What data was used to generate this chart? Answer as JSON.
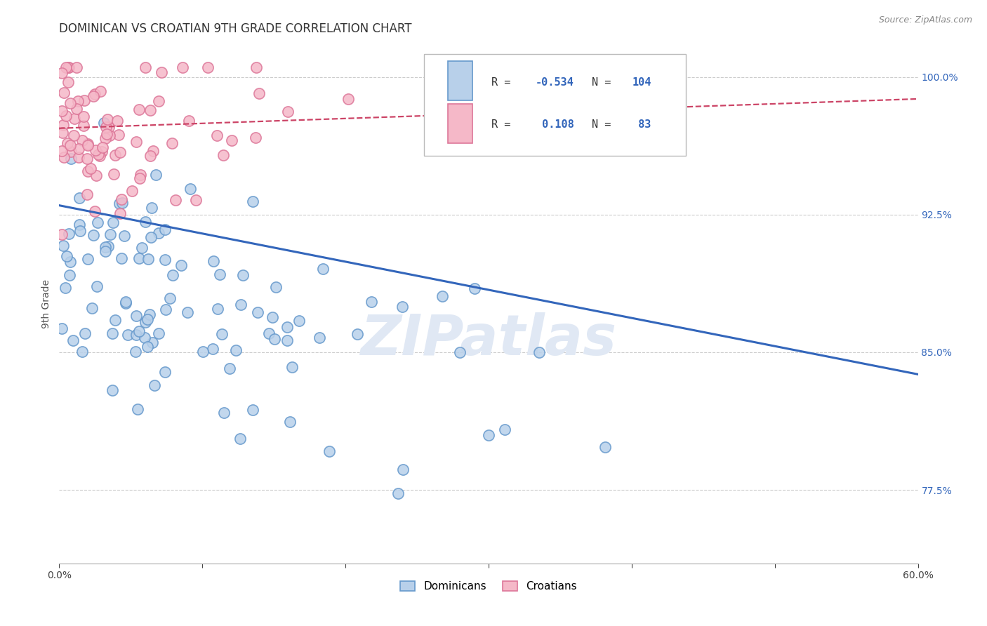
{
  "title": "DOMINICAN VS CROATIAN 9TH GRADE CORRELATION CHART",
  "source_text": "Source: ZipAtlas.com",
  "ylabel": "9th Grade",
  "xlim": [
    0.0,
    0.6
  ],
  "ylim": [
    0.735,
    1.018
  ],
  "yticks": [
    0.775,
    0.85,
    0.925,
    1.0
  ],
  "ytick_labels": [
    "77.5%",
    "85.0%",
    "92.5%",
    "100.0%"
  ],
  "xticks": [
    0.0,
    0.1,
    0.2,
    0.3,
    0.4,
    0.5,
    0.6
  ],
  "xtick_labels": [
    "0.0%",
    "",
    "",
    "",
    "",
    "",
    "60.0%"
  ],
  "blue_R": -0.534,
  "blue_N": 104,
  "pink_R": 0.108,
  "pink_N": 83,
  "blue_color": "#b8d0ea",
  "pink_color": "#f5b8c8",
  "blue_edge_color": "#6699cc",
  "pink_edge_color": "#dd7799",
  "blue_line_color": "#3366bb",
  "pink_line_color": "#cc4466",
  "blue_label": "Dominicans",
  "pink_label": "Croatians",
  "watermark": "ZIPatlas",
  "dot_size": 120,
  "blue_line_y0": 0.93,
  "blue_line_y1": 0.838,
  "pink_line_y0": 0.972,
  "pink_line_y1": 0.988
}
